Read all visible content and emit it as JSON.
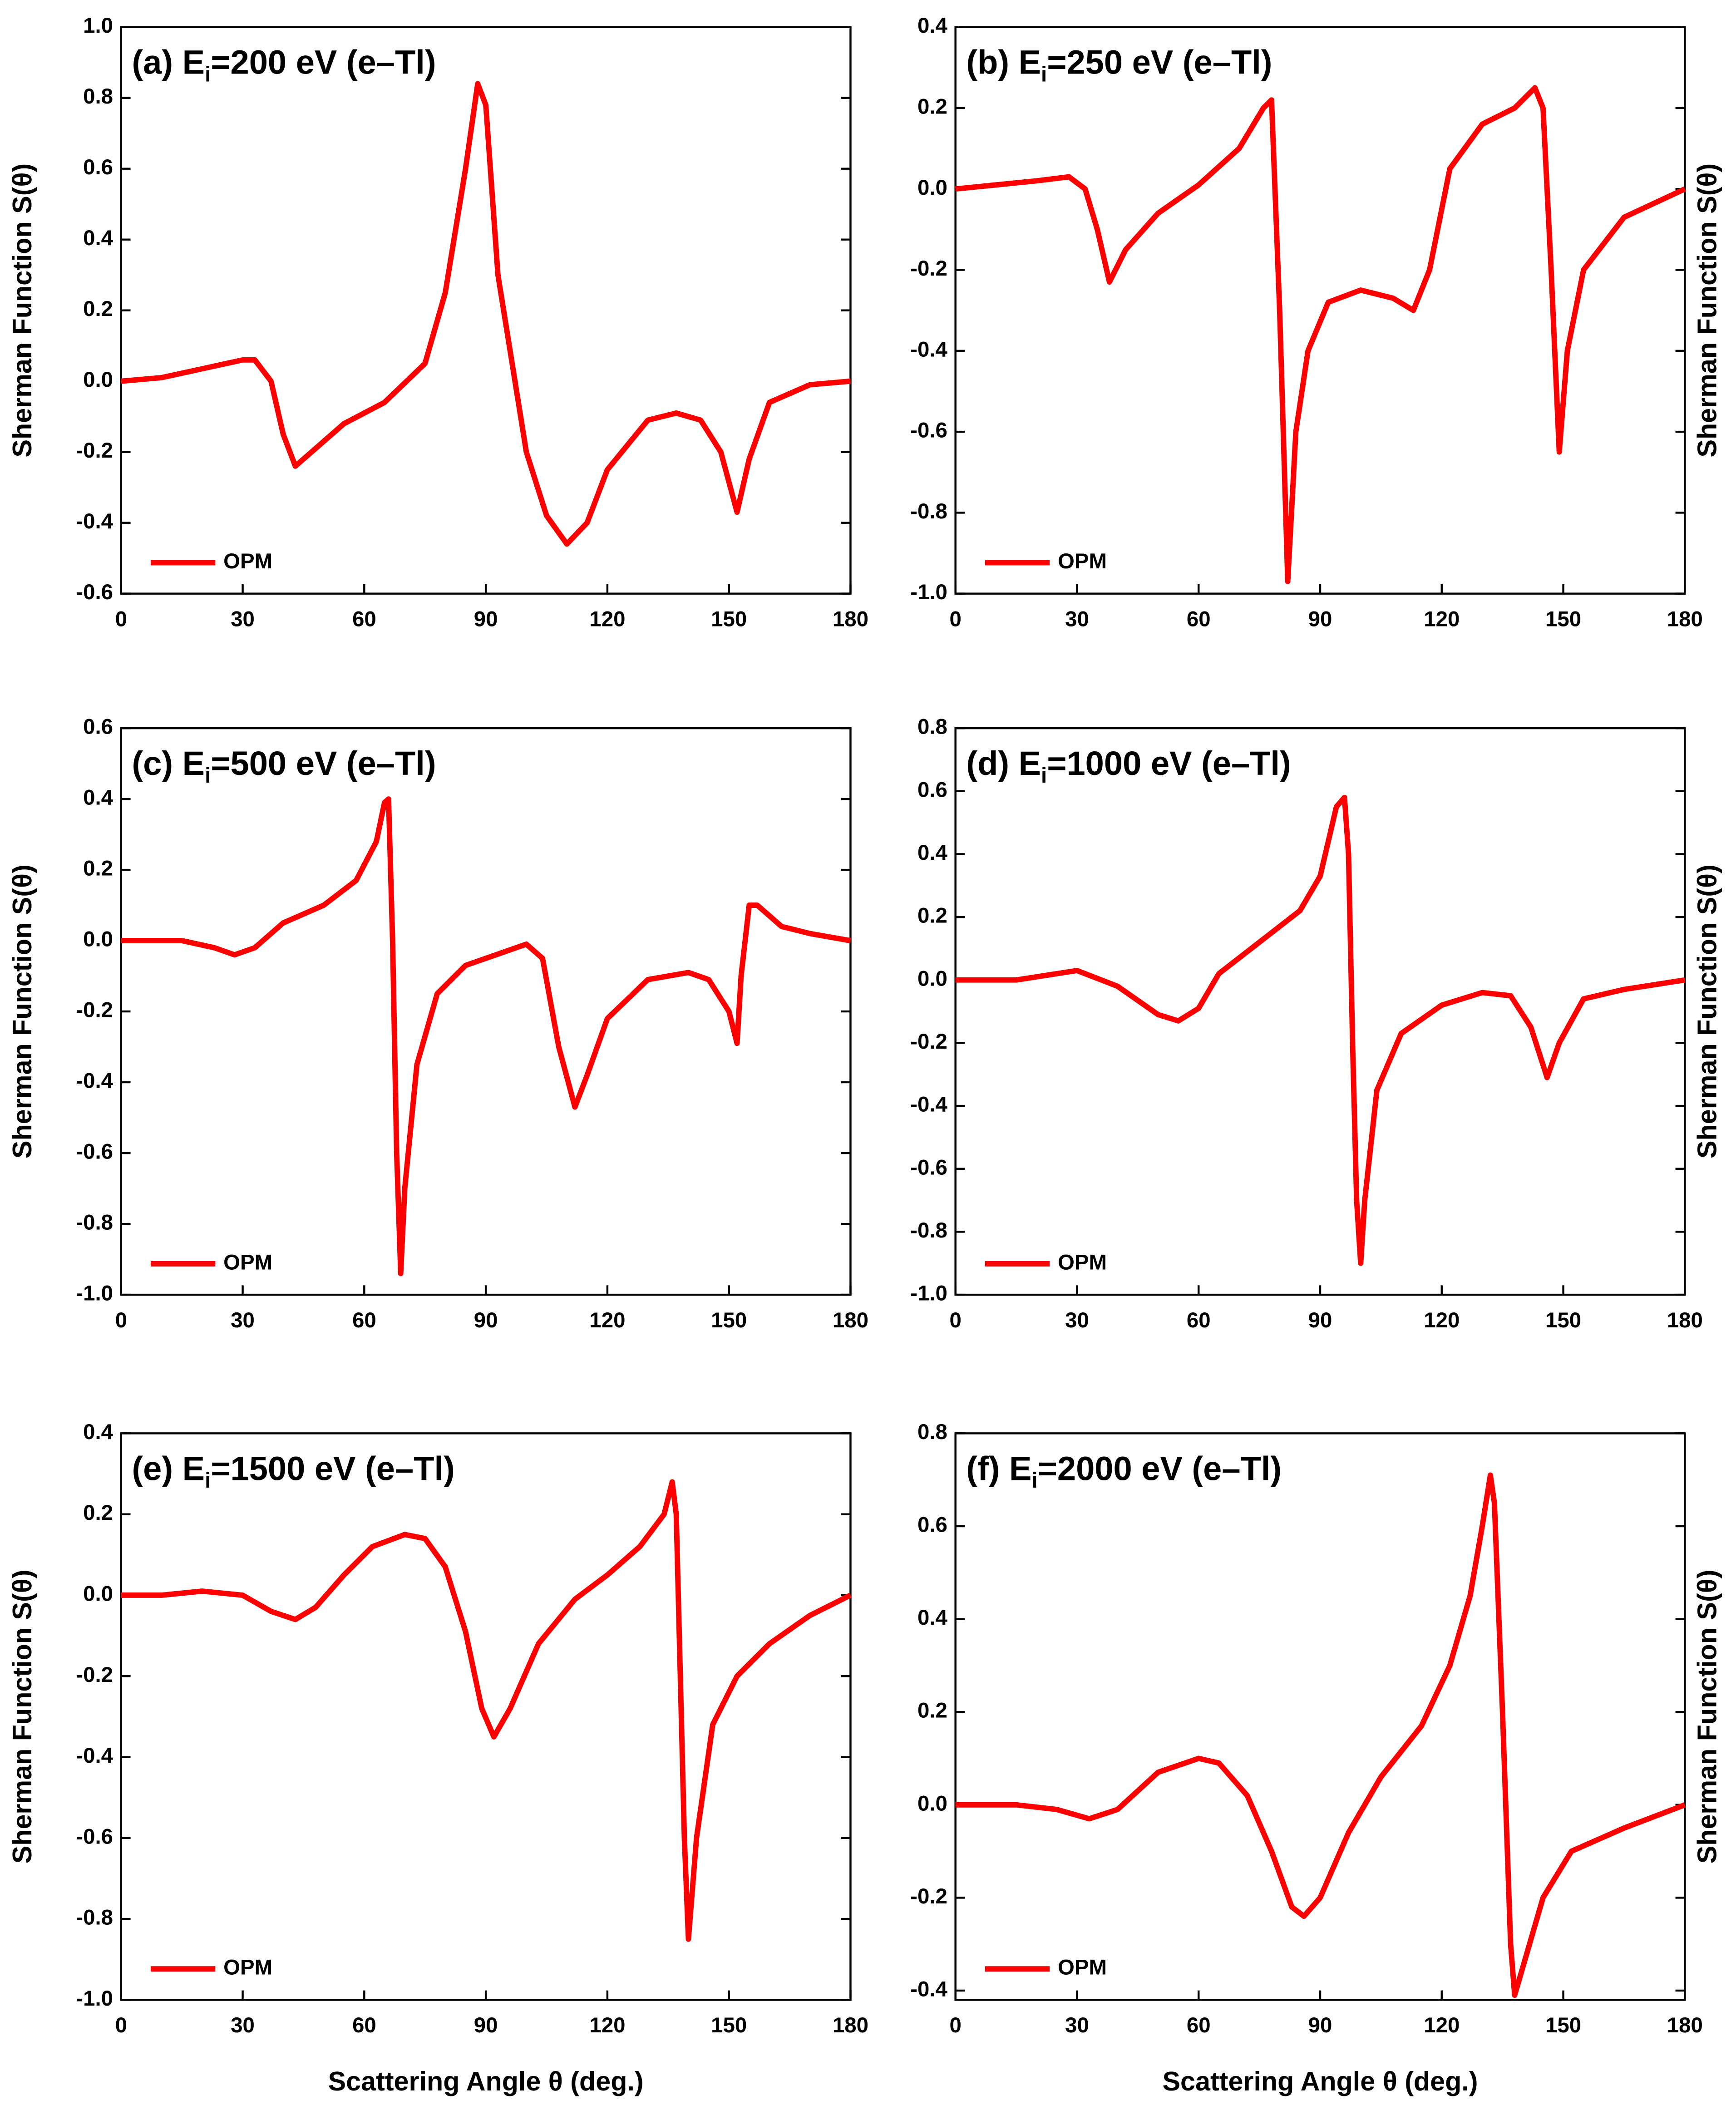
{
  "chart_data": [
    {
      "type": "line",
      "title": [
        "(a) E",
        "i",
        "=200 eV (e–Tl)"
      ],
      "y_label": "Sherman Function S(θ)",
      "y_label_side": "left",
      "legend": "lower left",
      "xlim": [
        0,
        180
      ],
      "xticks": [
        0,
        30,
        60,
        90,
        120,
        150,
        180
      ],
      "ylim": [
        -0.6,
        1.0
      ],
      "yticks": [
        -0.6,
        -0.4,
        -0.2,
        {
          "value": 0,
          "label": "0.0"
        },
        0.2,
        0.4,
        0.6,
        0.8,
        {
          "value": 1,
          "label": "1.0"
        }
      ],
      "x": [
        0,
        10,
        20,
        30,
        33,
        37,
        40,
        43,
        47,
        55,
        65,
        75,
        80,
        85,
        88,
        90,
        93,
        100,
        105,
        110,
        115,
        120,
        130,
        137,
        143,
        148,
        152,
        155,
        160,
        170,
        180
      ],
      "series": [
        {
          "name": "OPM",
          "color": "#ff0000",
          "values": [
            0,
            0.01,
            0.035,
            0.06,
            0.06,
            0,
            -0.15,
            -0.24,
            -0.2,
            -0.12,
            -0.06,
            0.05,
            0.25,
            0.6,
            0.84,
            0.78,
            0.3,
            -0.2,
            -0.38,
            -0.46,
            -0.4,
            -0.25,
            -0.11,
            -0.09,
            -0.11,
            -0.2,
            -0.37,
            -0.22,
            -0.06,
            -0.01,
            0
          ]
        }
      ]
    },
    {
      "type": "line",
      "title": [
        "(b) E",
        "i",
        "=250 eV (e–Tl)"
      ],
      "y_label": "Sherman Function S(θ)",
      "y_label_side": "right",
      "legend": "lower left",
      "xlim": [
        0,
        180
      ],
      "xticks": [
        0,
        30,
        60,
        90,
        120,
        150,
        180
      ],
      "ylim": [
        -1.0,
        0.4
      ],
      "yticks": [
        {
          "value": -1,
          "label": "-1.0"
        },
        -0.8,
        -0.6,
        -0.4,
        -0.2,
        {
          "value": 0,
          "label": "0.0"
        },
        0.2,
        0.4
      ],
      "x": [
        0,
        10,
        20,
        28,
        32,
        35,
        38,
        42,
        50,
        60,
        70,
        76,
        78,
        80,
        82,
        84,
        87,
        92,
        100,
        108,
        113,
        117,
        122,
        130,
        138,
        143,
        145,
        147,
        149,
        151,
        155,
        165,
        180
      ],
      "series": [
        {
          "name": "OPM",
          "color": "#ff0000",
          "values": [
            0,
            0.01,
            0.02,
            0.03,
            0,
            -0.1,
            -0.23,
            -0.15,
            -0.06,
            0.01,
            0.1,
            0.2,
            0.22,
            -0.3,
            -0.97,
            -0.6,
            -0.4,
            -0.28,
            -0.25,
            -0.27,
            -0.3,
            -0.2,
            0.05,
            0.16,
            0.2,
            0.25,
            0.2,
            -0.2,
            -0.65,
            -0.4,
            -0.2,
            -0.07,
            0
          ]
        }
      ]
    },
    {
      "type": "line",
      "title": [
        "(c) E",
        "i",
        "=500 eV (e–Tl)"
      ],
      "y_label": "Sherman Function S(θ)",
      "y_label_side": "left",
      "legend": "lower left",
      "xlim": [
        0,
        180
      ],
      "xticks": [
        0,
        30,
        60,
        90,
        120,
        150,
        180
      ],
      "ylim": [
        -1.0,
        0.6
      ],
      "yticks": [
        {
          "value": -1,
          "label": "-1.0"
        },
        -0.8,
        -0.6,
        -0.4,
        -0.2,
        {
          "value": 0,
          "label": "0.0"
        },
        0.2,
        0.4,
        0.6
      ],
      "x": [
        0,
        15,
        23,
        28,
        33,
        40,
        50,
        58,
        63,
        65,
        66,
        67,
        68,
        69,
        70,
        73,
        78,
        85,
        95,
        100,
        104,
        108,
        112,
        115,
        120,
        130,
        140,
        145,
        150,
        152,
        153,
        155,
        157,
        163,
        170,
        180
      ],
      "series": [
        {
          "name": "OPM",
          "color": "#ff0000",
          "values": [
            0,
            0,
            -0.02,
            -0.04,
            -0.02,
            0.05,
            0.1,
            0.17,
            0.28,
            0.39,
            0.4,
            0,
            -0.6,
            -0.94,
            -0.7,
            -0.35,
            -0.15,
            -0.07,
            -0.03,
            -0.01,
            -0.05,
            -0.3,
            -0.47,
            -0.38,
            -0.22,
            -0.11,
            -0.09,
            -0.11,
            -0.2,
            -0.29,
            -0.1,
            0.1,
            0.1,
            0.04,
            0.02,
            0
          ]
        }
      ]
    },
    {
      "type": "line",
      "title": [
        "(d) E",
        "i",
        "=1000 eV (e–Tl)"
      ],
      "y_label": "Sherman Function S(θ)",
      "y_label_side": "right",
      "legend": "lower left",
      "xlim": [
        0,
        180
      ],
      "xticks": [
        0,
        30,
        60,
        90,
        120,
        150,
        180
      ],
      "ylim": [
        -1.0,
        0.8
      ],
      "yticks": [
        {
          "value": -1,
          "label": "-1.0"
        },
        -0.8,
        -0.6,
        -0.4,
        -0.2,
        {
          "value": 0,
          "label": "0.0"
        },
        0.2,
        0.4,
        0.6,
        0.8
      ],
      "x": [
        0,
        15,
        30,
        40,
        50,
        55,
        60,
        65,
        75,
        85,
        90,
        94,
        96,
        97,
        98,
        99,
        100,
        101,
        104,
        110,
        120,
        130,
        137,
        142,
        146,
        149,
        155,
        165,
        180
      ],
      "series": [
        {
          "name": "OPM",
          "color": "#ff0000",
          "values": [
            0,
            0,
            0.03,
            -0.02,
            -0.11,
            -0.13,
            -0.09,
            0.02,
            0.12,
            0.22,
            0.33,
            0.55,
            0.58,
            0.4,
            -0.2,
            -0.7,
            -0.9,
            -0.7,
            -0.35,
            -0.17,
            -0.08,
            -0.04,
            -0.05,
            -0.15,
            -0.31,
            -0.2,
            -0.06,
            -0.03,
            0
          ]
        }
      ]
    },
    {
      "type": "line",
      "title": [
        "(e) E",
        "i",
        "=1500 eV (e–Tl)"
      ],
      "y_label": "Sherman Function S(θ)",
      "y_label_side": "left",
      "x_label": "Scattering Angle θ (deg.)",
      "legend": "lower left",
      "xlim": [
        0,
        180
      ],
      "xticks": [
        0,
        30,
        60,
        90,
        120,
        150,
        180
      ],
      "ylim": [
        -1.0,
        0.4
      ],
      "yticks": [
        {
          "value": -1,
          "label": "-1.0"
        },
        -0.8,
        -0.6,
        -0.4,
        -0.2,
        {
          "value": 0,
          "label": "0.0"
        },
        0.2,
        0.4
      ],
      "x": [
        0,
        10,
        20,
        30,
        37,
        43,
        48,
        55,
        62,
        70,
        75,
        80,
        85,
        89,
        92,
        96,
        103,
        112,
        120,
        128,
        134,
        136,
        137,
        138,
        139,
        140,
        142,
        146,
        152,
        160,
        170,
        180
      ],
      "series": [
        {
          "name": "OPM",
          "color": "#ff0000",
          "values": [
            0,
            0,
            0.01,
            0,
            -0.04,
            -0.06,
            -0.03,
            0.05,
            0.12,
            0.15,
            0.14,
            0.07,
            -0.09,
            -0.28,
            -0.35,
            -0.28,
            -0.12,
            -0.01,
            0.05,
            0.12,
            0.2,
            0.28,
            0.2,
            -0.2,
            -0.6,
            -0.85,
            -0.6,
            -0.32,
            -0.2,
            -0.12,
            -0.05,
            0
          ]
        }
      ]
    },
    {
      "type": "line",
      "title": [
        "(f) E",
        "i",
        "=2000 eV (e–Tl)"
      ],
      "y_label": "Sherman Function S(θ)",
      "y_label_side": "right",
      "x_label": "Scattering Angle θ (deg.)",
      "legend": "lower left",
      "xlim": [
        0,
        180
      ],
      "xticks": [
        0,
        30,
        60,
        90,
        120,
        150,
        180
      ],
      "ylim": [
        -0.42,
        0.8
      ],
      "yticks": [
        -0.4,
        -0.2,
        {
          "value": 0,
          "label": "0.0"
        },
        0.2,
        0.4,
        0.6,
        0.8
      ],
      "x": [
        0,
        15,
        25,
        33,
        40,
        50,
        60,
        65,
        72,
        78,
        83,
        86,
        90,
        97,
        105,
        115,
        122,
        127,
        130,
        132,
        133,
        135,
        137,
        138,
        140,
        145,
        152,
        165,
        180
      ],
      "series": [
        {
          "name": "OPM",
          "color": "#ff0000",
          "values": [
            0,
            0,
            -0.01,
            -0.03,
            -0.01,
            0.07,
            0.1,
            0.09,
            0.02,
            -0.1,
            -0.22,
            -0.24,
            -0.2,
            -0.06,
            0.06,
            0.17,
            0.3,
            0.45,
            0.6,
            0.71,
            0.65,
            0.2,
            -0.3,
            -0.41,
            -0.35,
            -0.2,
            -0.1,
            -0.05,
            0
          ]
        }
      ]
    }
  ]
}
